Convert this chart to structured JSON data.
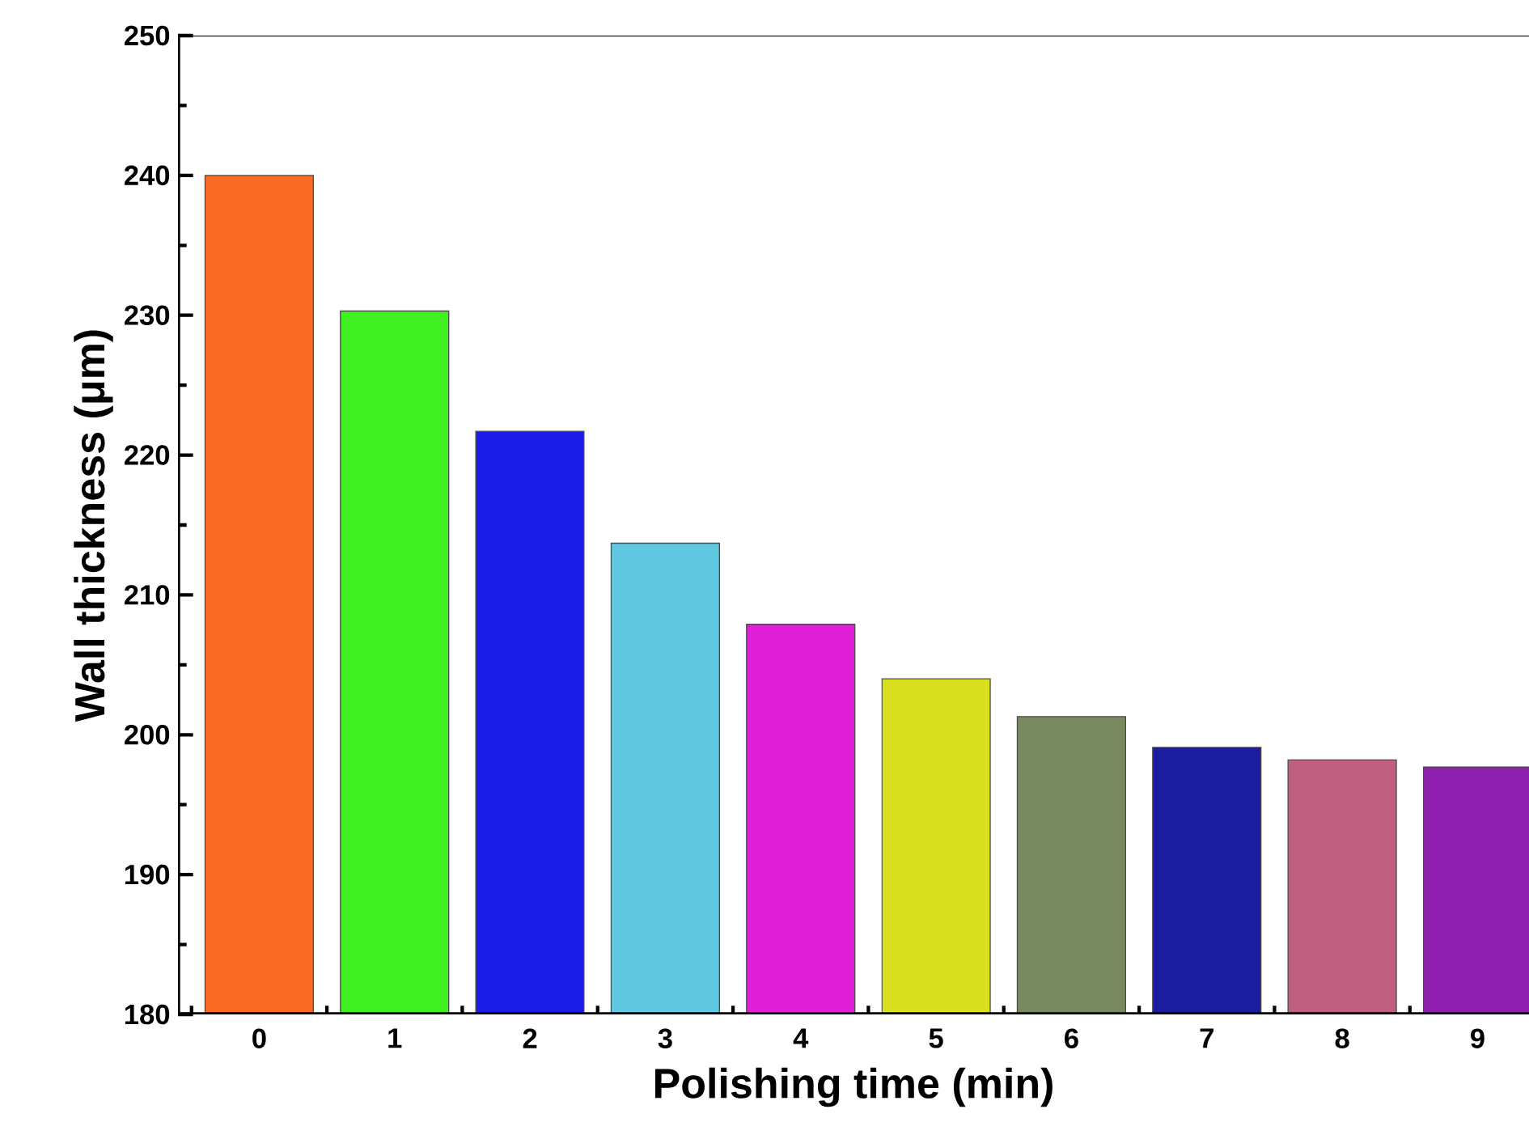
{
  "chart_data": {
    "type": "bar",
    "xlabel": "Polishing time (min)",
    "ylabel": "Wall thickness (μm)",
    "categories": [
      "0",
      "1",
      "2",
      "3",
      "4",
      "5",
      "6",
      "7",
      "8",
      "9"
    ],
    "values": [
      240.0,
      230.3,
      221.7,
      213.7,
      207.9,
      204.0,
      201.3,
      199.1,
      198.2,
      197.7
    ],
    "colors": [
      "#fb6a22",
      "#40f020",
      "#1c1ce8",
      "#60c8e0",
      "#e020d8",
      "#d8e020",
      "#7a8a60",
      "#1c1ca0",
      "#c06080",
      "#9020b0"
    ],
    "ylim": [
      180,
      250
    ],
    "yticks": [
      180,
      190,
      200,
      210,
      220,
      230,
      240,
      250
    ]
  }
}
